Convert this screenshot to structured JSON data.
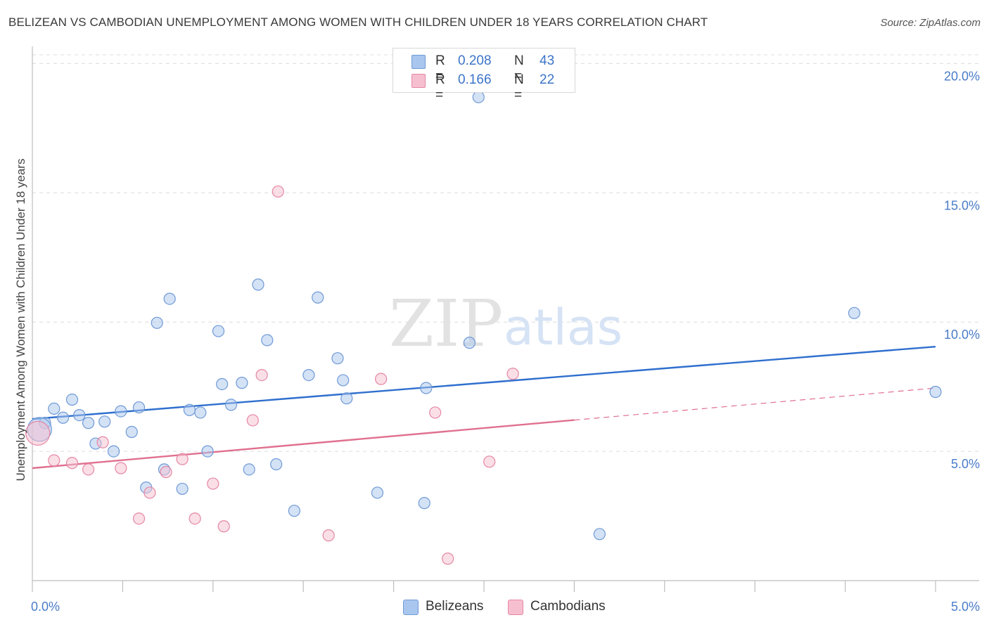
{
  "header": {
    "title": "BELIZEAN VS CAMBODIAN UNEMPLOYMENT AMONG WOMEN WITH CHILDREN UNDER 18 YEARS CORRELATION CHART",
    "source": "Source: ZipAtlas.com"
  },
  "watermark": {
    "zip": "ZIP",
    "atlas": "atlas"
  },
  "legend": {
    "rows": [
      {
        "r_label": "R =",
        "r_value": "0.208",
        "n_label": "N =",
        "n_value": "43",
        "color": "#a9c6ee",
        "border": "#6f9ad6"
      },
      {
        "r_label": "R =",
        "r_value": "0.166",
        "n_label": "N =",
        "n_value": "22",
        "color": "#f6bfcf",
        "border": "#e587a4"
      }
    ]
  },
  "bottom_legend": [
    {
      "label": "Belizeans",
      "color": "#a9c6ee",
      "border": "#6f9ad6"
    },
    {
      "label": "Cambodians",
      "color": "#f6bfcf",
      "border": "#e587a4"
    }
  ],
  "chart_data": {
    "type": "scatter",
    "xlabel": "",
    "ylabel": "Unemployment Among Women with Children Under 18 years",
    "xlim": [
      0,
      5
    ],
    "ylim": [
      0,
      20.5
    ],
    "x_tick_labels": [
      "0.0%",
      "5.0%"
    ],
    "y_ticks": [
      5,
      10,
      15,
      20
    ],
    "y_tick_labels": [
      "5.0%",
      "10.0%",
      "15.0%",
      "20.0%"
    ],
    "grid": true,
    "series": [
      {
        "name": "Belizeans",
        "color": "#a9c6ee",
        "stroke": "#6f9ad6",
        "trend_color": "#2f6fce",
        "trend": {
          "x0": 0.0,
          "y0": 6.25,
          "x1": 5.0,
          "y1": 9.05,
          "dash_from": null
        },
        "points": [
          [
            0.07,
            6.1
          ],
          [
            0.12,
            6.65
          ],
          [
            0.17,
            6.3
          ],
          [
            0.22,
            7.0
          ],
          [
            0.26,
            6.4
          ],
          [
            0.31,
            6.1
          ],
          [
            0.35,
            5.3
          ],
          [
            0.4,
            6.15
          ],
          [
            0.45,
            5.0
          ],
          [
            0.49,
            6.55
          ],
          [
            0.55,
            5.75
          ],
          [
            0.59,
            6.7
          ],
          [
            0.63,
            3.6
          ],
          [
            0.69,
            9.97
          ],
          [
            0.73,
            4.3
          ],
          [
            0.76,
            10.9
          ],
          [
            0.83,
            3.55
          ],
          [
            0.87,
            6.6
          ],
          [
            0.93,
            6.5
          ],
          [
            0.97,
            5.0
          ],
          [
            1.03,
            9.65
          ],
          [
            1.05,
            7.6
          ],
          [
            1.1,
            6.8
          ],
          [
            1.16,
            7.65
          ],
          [
            1.2,
            4.3
          ],
          [
            1.25,
            11.45
          ],
          [
            1.3,
            9.3
          ],
          [
            1.35,
            4.5
          ],
          [
            1.45,
            2.7
          ],
          [
            1.53,
            7.95
          ],
          [
            1.58,
            10.95
          ],
          [
            1.69,
            8.6
          ],
          [
            1.72,
            7.75
          ],
          [
            1.74,
            7.05
          ],
          [
            1.91,
            3.4
          ],
          [
            2.17,
            3.0
          ],
          [
            2.18,
            7.45
          ],
          [
            2.42,
            9.2
          ],
          [
            2.47,
            18.7
          ],
          [
            3.14,
            1.8
          ],
          [
            4.55,
            10.35
          ],
          [
            5.0,
            7.3
          ],
          [
            0.04,
            5.85
          ]
        ]
      },
      {
        "name": "Cambodians",
        "color": "#f6bfcf",
        "stroke": "#e587a4",
        "trend_color": "#e0708f",
        "trend": {
          "x0": 0.0,
          "y0": 4.35,
          "x1": 5.0,
          "y1": 7.45,
          "dash_from": 3.0
        },
        "points": [
          [
            0.03,
            5.7
          ],
          [
            0.12,
            4.65
          ],
          [
            0.22,
            4.55
          ],
          [
            0.31,
            4.3
          ],
          [
            0.39,
            5.35
          ],
          [
            0.49,
            4.35
          ],
          [
            0.59,
            2.4
          ],
          [
            0.65,
            3.4
          ],
          [
            0.74,
            4.2
          ],
          [
            0.83,
            4.7
          ],
          [
            0.9,
            2.4
          ],
          [
            1.0,
            3.75
          ],
          [
            1.06,
            2.1
          ],
          [
            1.22,
            6.2
          ],
          [
            1.27,
            7.95
          ],
          [
            1.36,
            15.05
          ],
          [
            1.64,
            1.75
          ],
          [
            1.93,
            7.8
          ],
          [
            2.23,
            6.5
          ],
          [
            2.3,
            0.85
          ],
          [
            2.53,
            4.6
          ],
          [
            2.66,
            8.0
          ]
        ]
      }
    ]
  }
}
